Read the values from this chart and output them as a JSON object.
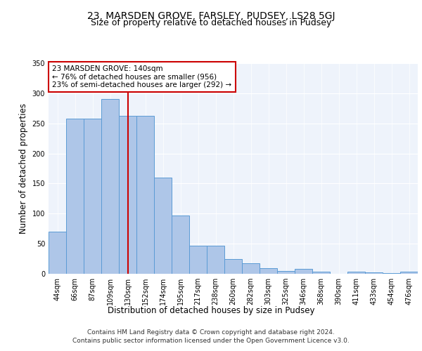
{
  "title": "23, MARSDEN GROVE, FARSLEY, PUDSEY, LS28 5GJ",
  "subtitle": "Size of property relative to detached houses in Pudsey",
  "xlabel": "Distribution of detached houses by size in Pudsey",
  "ylabel": "Number of detached properties",
  "categories": [
    "44sqm",
    "66sqm",
    "87sqm",
    "109sqm",
    "130sqm",
    "152sqm",
    "174sqm",
    "195sqm",
    "217sqm",
    "238sqm",
    "260sqm",
    "282sqm",
    "303sqm",
    "325sqm",
    "346sqm",
    "368sqm",
    "390sqm",
    "411sqm",
    "433sqm",
    "454sqm",
    "476sqm"
  ],
  "values": [
    70,
    258,
    258,
    290,
    262,
    262,
    160,
    97,
    47,
    47,
    25,
    17,
    9,
    5,
    8,
    4,
    0,
    4,
    2,
    1,
    3
  ],
  "bar_color": "#aec6e8",
  "bar_edge_color": "#5b9bd5",
  "red_line_x": 4.5,
  "annotation_text": "23 MARSDEN GROVE: 140sqm\n← 76% of detached houses are smaller (956)\n23% of semi-detached houses are larger (292) →",
  "annotation_box_color": "#ffffff",
  "annotation_box_edge_color": "#cc0000",
  "ylim": [
    0,
    350
  ],
  "yticks": [
    0,
    50,
    100,
    150,
    200,
    250,
    300,
    350
  ],
  "bg_color": "#eef3fb",
  "grid_color": "#ffffff",
  "footer_line1": "Contains HM Land Registry data © Crown copyright and database right 2024.",
  "footer_line2": "Contains public sector information licensed under the Open Government Licence v3.0.",
  "title_fontsize": 10,
  "subtitle_fontsize": 9,
  "axis_label_fontsize": 8.5,
  "tick_fontsize": 7,
  "footer_fontsize": 6.5
}
